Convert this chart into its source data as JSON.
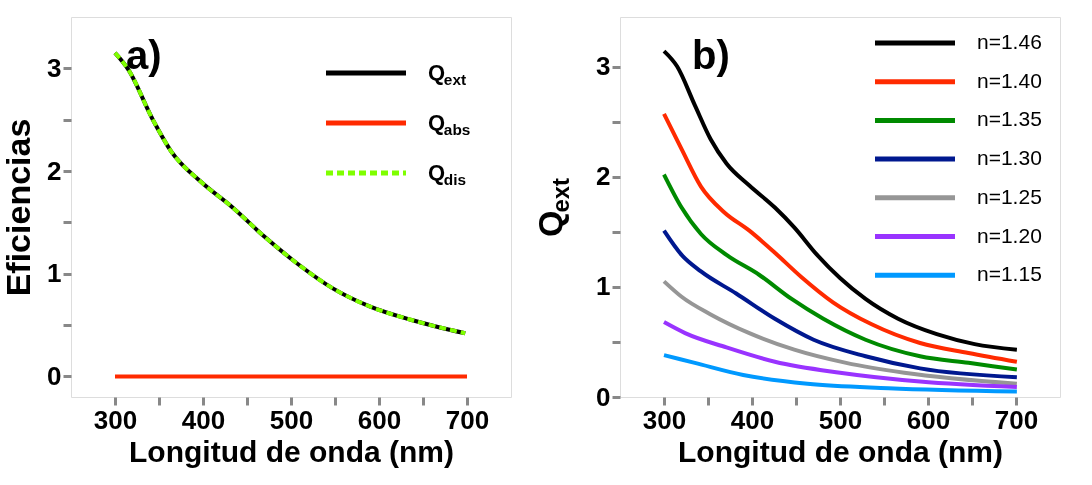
{
  "chart_data": [
    {
      "type": "line",
      "xlabel": "Longitud de onda (nm)",
      "ylabel": "Eficiencias",
      "annotations": [
        "a)"
      ],
      "legend": "top right",
      "grid": false,
      "xlim": [
        250,
        750
      ],
      "xticks": [
        300,
        {
          "value": 350,
          "label": null
        },
        400,
        {
          "value": 450,
          "label": null
        },
        500,
        {
          "value": 550,
          "label": null
        },
        600,
        {
          "value": 650,
          "label": null
        },
        700
      ],
      "ylim": [
        -0.2,
        3.5
      ],
      "yticks": [
        0,
        {
          "value": 0.5,
          "label": null
        },
        1,
        {
          "value": 1.5,
          "label": null
        },
        2,
        {
          "value": 2.5,
          "label": null
        },
        3
      ],
      "series": [
        {
          "name": "Q$_{ext}$",
          "color": "#000000",
          "line_style": "solid",
          "x": [
            300,
            315,
            343,
            364,
            397,
            433,
            470,
            507,
            547,
            590,
            637,
            698
          ],
          "values": [
            3.15,
            2.99,
            2.5,
            2.19,
            1.9,
            1.65,
            1.36,
            1.1,
            0.86,
            0.68,
            0.55,
            0.42
          ]
        },
        {
          "name": "Q$_{abs}$",
          "color": "#ff2a00",
          "line_style": "solid",
          "x": [
            300,
            700
          ],
          "values": [
            0,
            0
          ]
        },
        {
          "name": "Q$_{dis}$",
          "color": "#7fff00",
          "line_style": "dashed",
          "x": [
            300,
            315,
            343,
            364,
            397,
            433,
            470,
            507,
            547,
            590,
            637,
            698
          ],
          "values": [
            3.15,
            2.99,
            2.5,
            2.19,
            1.9,
            1.65,
            1.36,
            1.1,
            0.86,
            0.68,
            0.55,
            0.42
          ]
        }
      ]
    },
    {
      "type": "line",
      "xlabel": "Longitud de onda (nm)",
      "ylabel": "Q$_{ext}$",
      "annotations": [
        "b)"
      ],
      "legend": "top right",
      "grid": false,
      "xlim": [
        250,
        750
      ],
      "xticks": [
        300,
        {
          "value": 350,
          "label": null
        },
        400,
        {
          "value": 450,
          "label": null
        },
        500,
        {
          "value": 550,
          "label": null
        },
        600,
        {
          "value": 650,
          "label": null
        },
        700
      ],
      "ylim": [
        0,
        3.45
      ],
      "yticks": [
        0,
        {
          "value": 0.5,
          "label": null
        },
        1,
        {
          "value": 1.5,
          "label": null
        },
        2,
        {
          "value": 2.5,
          "label": null
        },
        3
      ],
      "series": [
        {
          "name": "n=1.46",
          "color": "#000000",
          "x": [
            300,
            315,
            335,
            353,
            371,
            397,
            426,
            448,
            474,
            500,
            529,
            566,
            610,
            653,
            701
          ],
          "values": [
            3.14,
            3.0,
            2.65,
            2.34,
            2.12,
            1.92,
            1.72,
            1.54,
            1.29,
            1.08,
            0.89,
            0.71,
            0.57,
            0.48,
            0.43
          ]
        },
        {
          "name": "n=1.40",
          "color": "#ff2a00",
          "x": [
            300,
            320,
            342,
            368,
            397,
            426,
            456,
            492,
            536,
            591,
            646,
            701
          ],
          "values": [
            2.57,
            2.25,
            1.91,
            1.68,
            1.51,
            1.31,
            1.09,
            0.86,
            0.66,
            0.49,
            0.4,
            0.32
          ]
        },
        {
          "name": "n=1.35",
          "color": "#008a00",
          "x": [
            300,
            320,
            342,
            371,
            408,
            445,
            481,
            529,
            591,
            646,
            701
          ],
          "values": [
            2.02,
            1.72,
            1.48,
            1.29,
            1.11,
            0.89,
            0.71,
            0.52,
            0.37,
            0.31,
            0.25
          ]
        },
        {
          "name": "n=1.30",
          "color": "#00188f",
          "x": [
            300,
            320,
            342,
            382,
            426,
            470,
            529,
            591,
            701
          ],
          "values": [
            1.51,
            1.29,
            1.14,
            0.94,
            0.71,
            0.52,
            0.37,
            0.26,
            0.18
          ]
        },
        {
          "name": "n=1.25",
          "color": "#969696",
          "x": [
            300,
            320,
            353,
            397,
            448,
            507,
            573,
            701
          ],
          "values": [
            1.05,
            0.91,
            0.75,
            0.58,
            0.43,
            0.31,
            0.22,
            0.12
          ]
        },
        {
          "name": "n=1.20",
          "color": "#9933ff",
          "x": [
            300,
            324,
            371,
            426,
            500,
            591,
            701
          ],
          "values": [
            0.68,
            0.58,
            0.45,
            0.32,
            0.22,
            0.14,
            0.09
          ]
        },
        {
          "name": "n=1.15",
          "color": "#0099ff",
          "x": [
            300,
            335,
            390,
            463,
            555,
            701
          ],
          "values": [
            0.38,
            0.31,
            0.2,
            0.12,
            0.08,
            0.05
          ]
        }
      ]
    }
  ]
}
